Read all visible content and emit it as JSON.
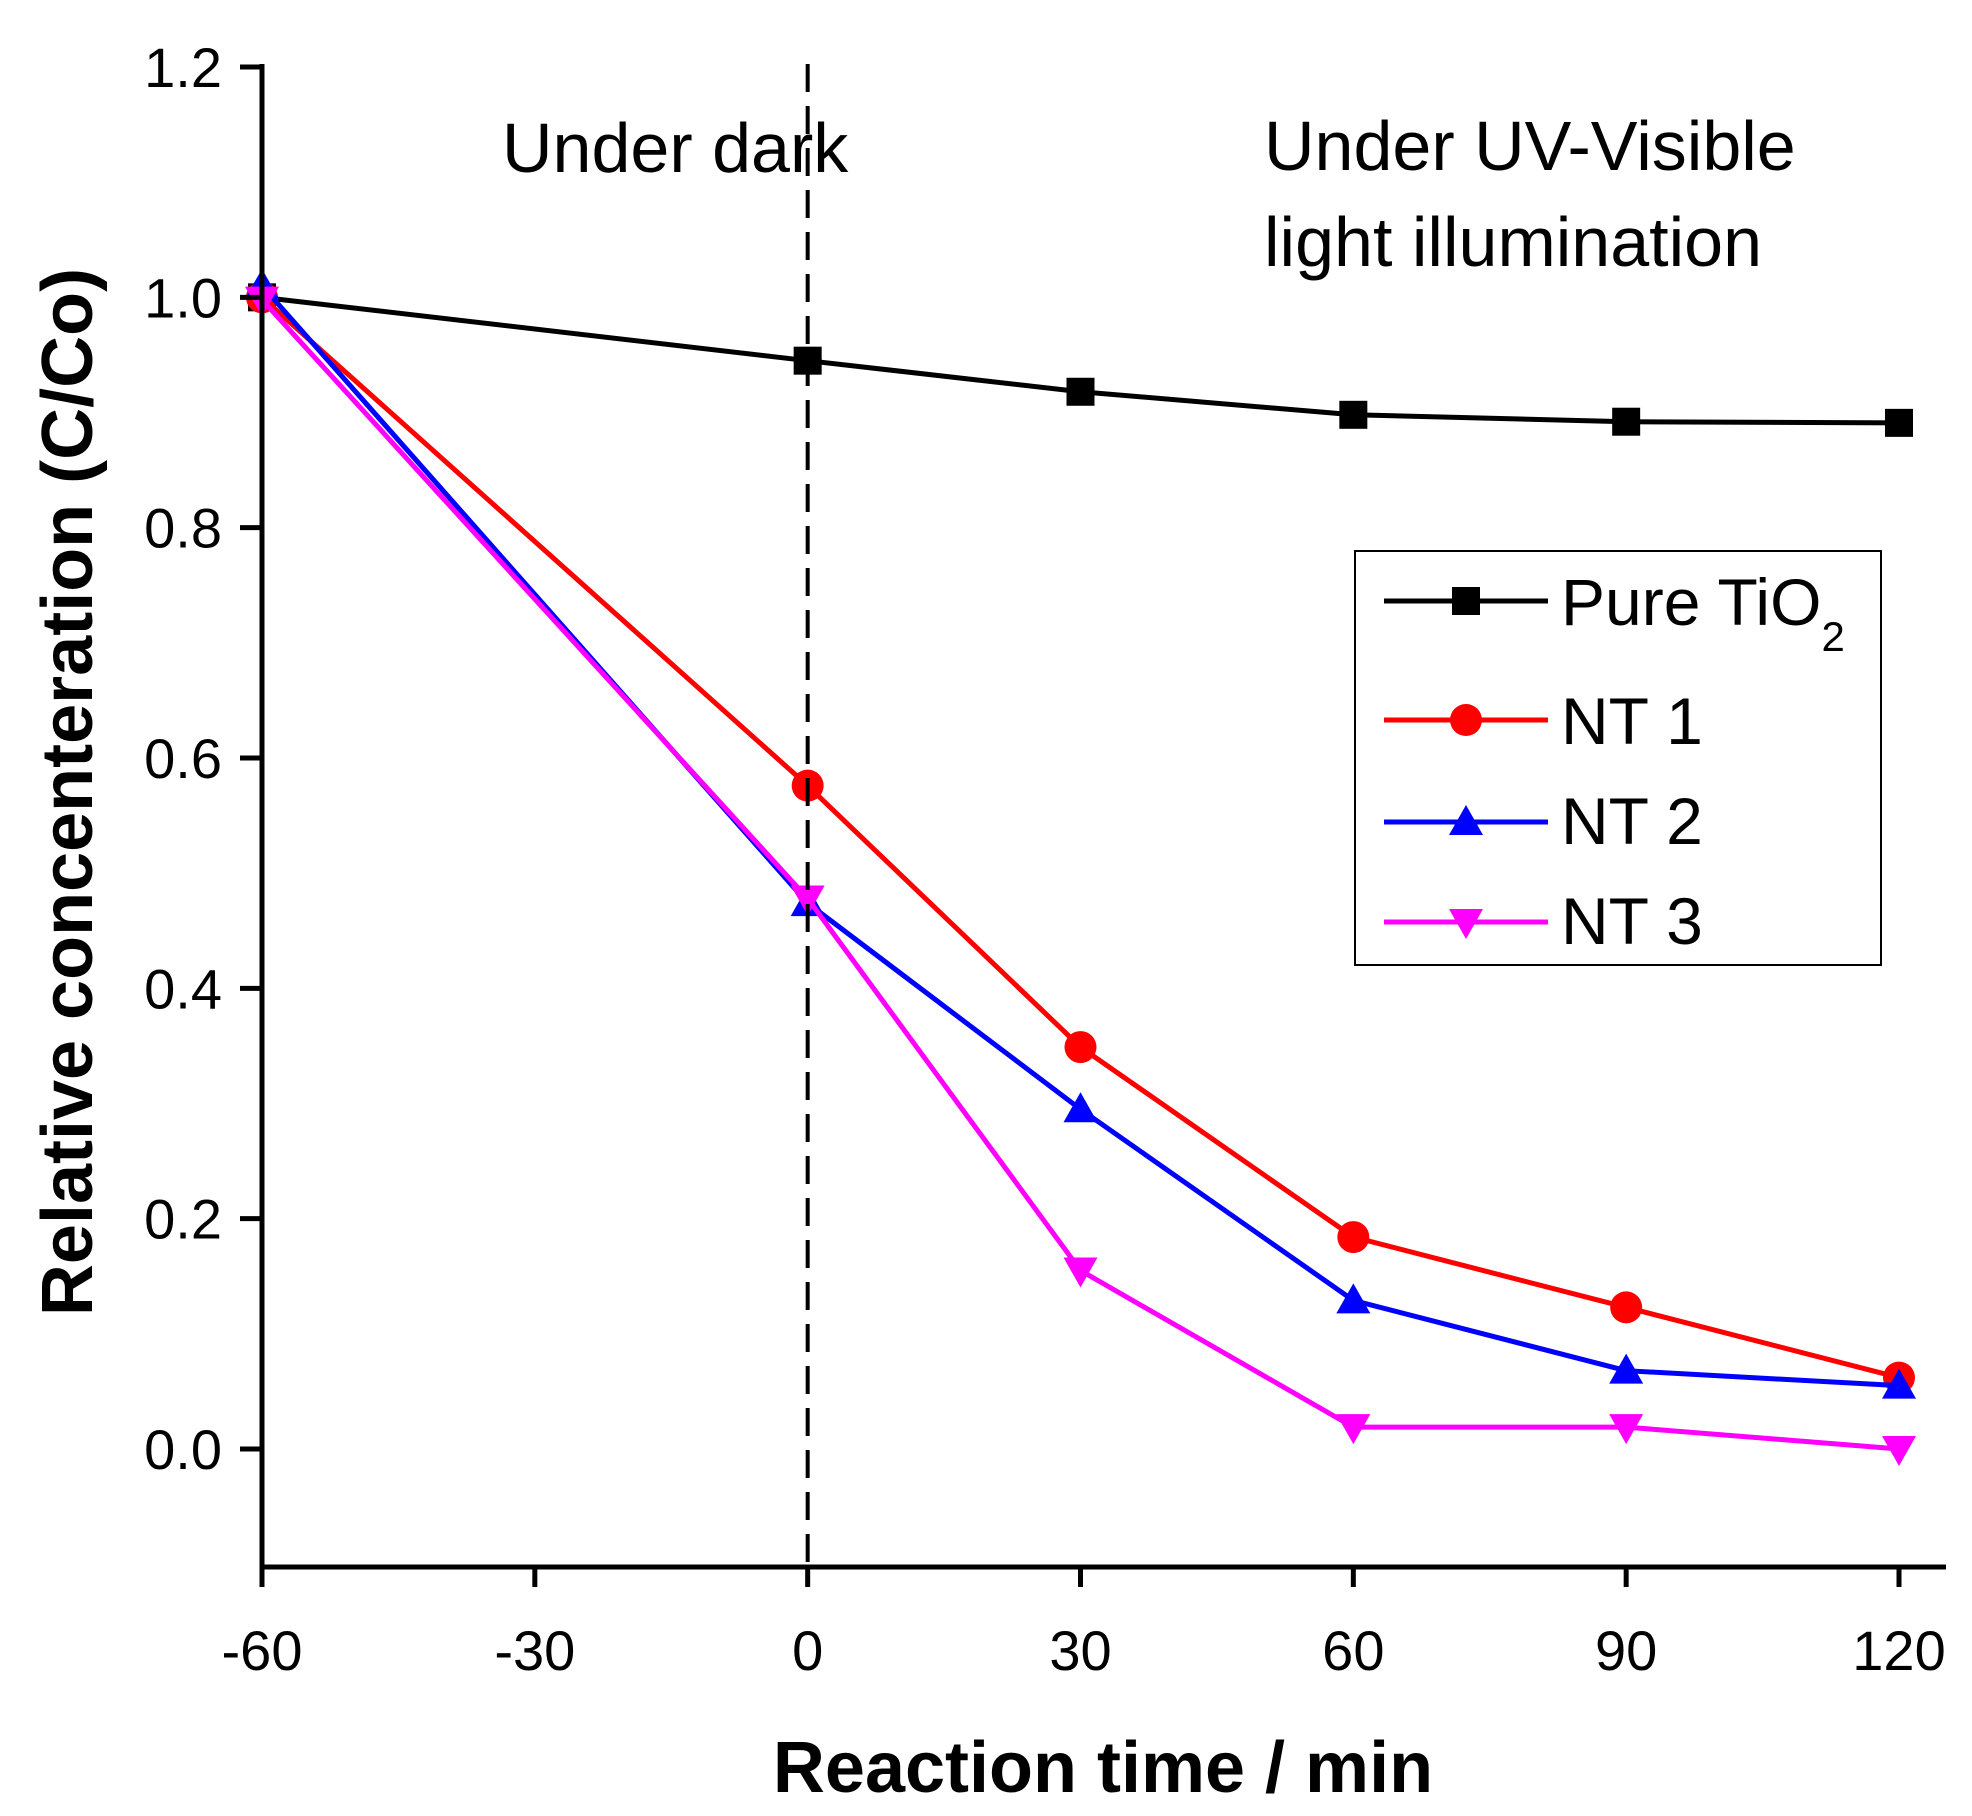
{
  "chart_data": {
    "type": "line",
    "title": "",
    "xlabel": "Reaction time / min",
    "ylabel": "Relative concenteration (C/Co)",
    "xlim": [
      -60,
      120
    ],
    "ylim": [
      -0.1,
      1.2
    ],
    "xticks": [
      -60,
      -30,
      0,
      30,
      60,
      90,
      120
    ],
    "xtick_labels": [
      "-60",
      "-30",
      "0",
      "30",
      "60",
      "90",
      "120"
    ],
    "yticks": [
      0.0,
      0.2,
      0.4,
      0.6,
      0.8,
      1.0,
      1.2
    ],
    "ytick_labels": [
      "0.0",
      "0.2",
      "0.4",
      "0.6",
      "0.8",
      "1.0",
      "1.2"
    ],
    "grid": false,
    "vline": {
      "x": 0,
      "style": "dashed"
    },
    "annotations": {
      "dark": "Under dark",
      "light_line1": "Under UV-Visible",
      "light_line2": "light illumination"
    },
    "legend_position": "right-middle",
    "x": [
      -60,
      0,
      30,
      60,
      90,
      120
    ],
    "series": [
      {
        "name": "Pure TiO",
        "name_sub": "2",
        "color": "#000000",
        "marker": "square",
        "values": [
          1.0,
          0.945,
          0.918,
          0.898,
          0.892,
          0.891
        ]
      },
      {
        "name": "NT 1",
        "color": "#ff0000",
        "marker": "circle",
        "values": [
          1.0,
          0.576,
          0.349,
          0.184,
          0.123,
          0.062
        ]
      },
      {
        "name": "NT 2",
        "color": "#0000ff",
        "marker": "triangle-up",
        "values": [
          1.01,
          0.474,
          0.295,
          0.129,
          0.068,
          0.055
        ]
      },
      {
        "name": "NT 3",
        "color": "#ff00ff",
        "marker": "triangle-down",
        "values": [
          0.998,
          0.478,
          0.155,
          0.019,
          0.019,
          0.0
        ]
      }
    ]
  }
}
